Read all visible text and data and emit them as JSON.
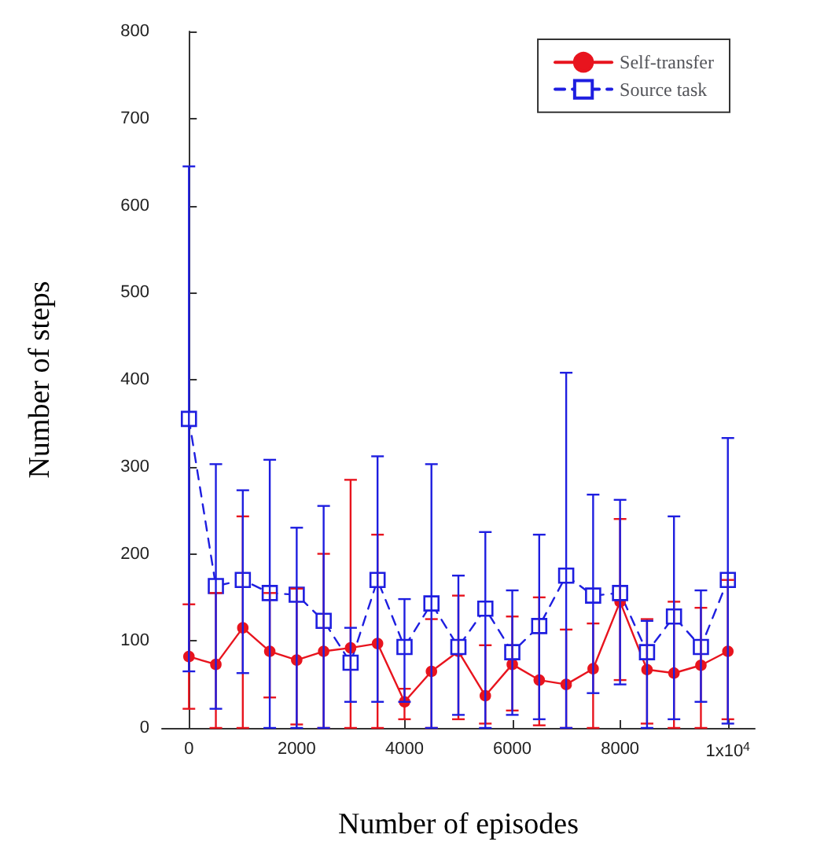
{
  "chart_data": {
    "type": "line",
    "xlabel": "Number of episodes",
    "ylabel": "Number of steps",
    "x": [
      0,
      500,
      1000,
      1500,
      2000,
      2500,
      3000,
      3500,
      4000,
      4500,
      5000,
      5500,
      6000,
      6500,
      7000,
      7500,
      8000,
      8500,
      9000,
      9500,
      10000
    ],
    "xlim": [
      -500,
      10500
    ],
    "xticks": [
      0,
      2000,
      4000,
      6000,
      8000,
      {
        "value": 10000,
        "label": "1x10$^{4}$"
      }
    ],
    "ylim": [
      0,
      800
    ],
    "yticks": [
      0,
      100,
      200,
      300,
      400,
      500,
      600,
      700,
      800
    ],
    "grid": false,
    "legend": "top right",
    "series": [
      {
        "name": "Self-transfer",
        "color": "#e8141e",
        "marker": "circle",
        "line_style": "solid",
        "values": [
          82,
          73,
          115,
          88,
          78,
          88,
          92,
          97,
          30,
          65,
          88,
          37,
          73,
          55,
          50,
          68,
          145,
          67,
          63,
          72,
          88
        ],
        "errors": [
          [
            22,
            142
          ],
          [
            0,
            155
          ],
          [
            0,
            243
          ],
          [
            35,
            155
          ],
          [
            4,
            160
          ],
          [
            0,
            200
          ],
          [
            0,
            285
          ],
          [
            0,
            222
          ],
          [
            10,
            45
          ],
          [
            0,
            125
          ],
          [
            10,
            152
          ],
          [
            5,
            95
          ],
          [
            20,
            128
          ],
          [
            3,
            150
          ],
          [
            0,
            113
          ],
          [
            0,
            120
          ],
          [
            55,
            240
          ],
          [
            5,
            125
          ],
          [
            0,
            145
          ],
          [
            0,
            138
          ],
          [
            10,
            170
          ]
        ]
      },
      {
        "name": "Source task",
        "color": "#1e1ee0",
        "marker": "square",
        "line_style": "dashed",
        "values": [
          355,
          163,
          170,
          155,
          153,
          123,
          75,
          170,
          93,
          143,
          93,
          137,
          87,
          117,
          175,
          152,
          155,
          87,
          128,
          93,
          170
        ],
        "errors": [
          [
            65,
            645
          ],
          [
            22,
            303
          ],
          [
            63,
            273
          ],
          [
            0,
            308
          ],
          [
            0,
            230
          ],
          [
            0,
            255
          ],
          [
            30,
            115
          ],
          [
            30,
            312
          ],
          [
            30,
            148
          ],
          [
            0,
            303
          ],
          [
            15,
            175
          ],
          [
            0,
            225
          ],
          [
            15,
            158
          ],
          [
            10,
            222
          ],
          [
            0,
            408
          ],
          [
            40,
            268
          ],
          [
            50,
            262
          ],
          [
            0,
            123
          ],
          [
            10,
            243
          ],
          [
            30,
            158
          ],
          [
            5,
            333
          ]
        ]
      }
    ]
  }
}
